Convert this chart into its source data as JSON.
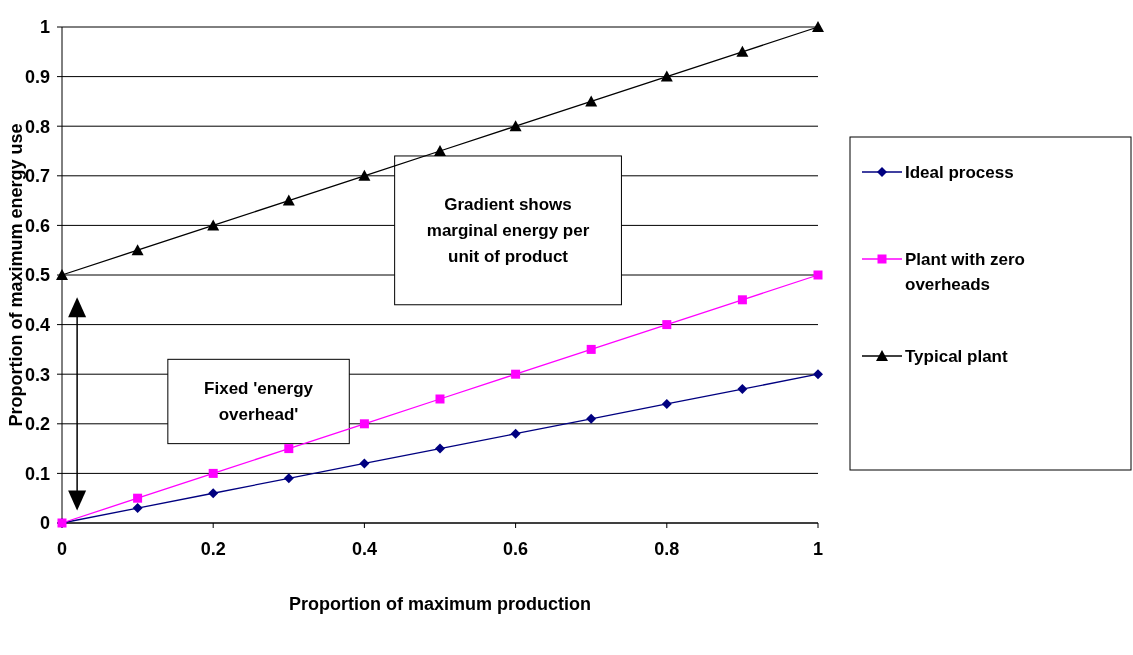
{
  "chart_data": {
    "type": "line",
    "xlabel": "Proportion of maximum production",
    "ylabel": "Proportion of maximum energy use",
    "x": [
      0,
      0.1,
      0.2,
      0.3,
      0.4,
      0.5,
      0.6,
      0.7,
      0.8,
      0.9,
      1
    ],
    "series": [
      {
        "name": "Ideal process",
        "color": "#000080",
        "marker": "diamond",
        "values": [
          0,
          0.03,
          0.06,
          0.09,
          0.12,
          0.15,
          0.18,
          0.21,
          0.24,
          0.27,
          0.3
        ]
      },
      {
        "name": "Plant with zero overheads",
        "color": "#ff00ff",
        "marker": "square",
        "values": [
          0,
          0.05,
          0.1,
          0.15,
          0.2,
          0.25,
          0.3,
          0.35,
          0.4,
          0.45,
          0.5
        ]
      },
      {
        "name": "Typical plant",
        "color": "#000000",
        "marker": "triangle",
        "values": [
          0.5,
          0.55,
          0.6,
          0.65,
          0.7,
          0.75,
          0.8,
          0.85,
          0.9,
          0.95,
          1
        ]
      }
    ],
    "xlim": [
      0,
      1
    ],
    "xticks": [
      0,
      0.2,
      0.4,
      0.6,
      0.8,
      1
    ],
    "ylim": [
      0,
      1
    ],
    "yticks": [
      0,
      0.1,
      0.2,
      0.3,
      0.4,
      0.5,
      0.6,
      0.7,
      0.8,
      0.9,
      1
    ],
    "grid": "y",
    "legend": "right",
    "annotations": [
      "Gradient shows marginal energy per unit of product",
      "Fixed 'energy overhead'"
    ]
  }
}
